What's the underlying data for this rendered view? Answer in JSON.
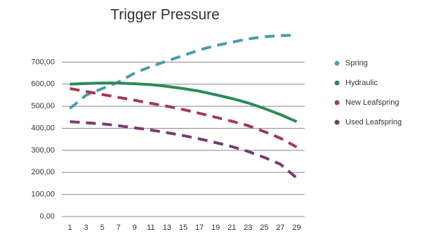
{
  "chart_data": {
    "type": "line",
    "title": "Trigger Pressure",
    "categories": [
      "1",
      "3",
      "5",
      "7",
      "9",
      "11",
      "13",
      "15",
      "17",
      "19",
      "21",
      "23",
      "25",
      "27",
      "29"
    ],
    "series": [
      {
        "name": "Spring",
        "color": "#4a9bb0",
        "dashed": true,
        "values": [
          490,
          550,
          580,
          610,
          650,
          680,
          705,
          730,
          755,
          775,
          790,
          805,
          815,
          820,
          822
        ]
      },
      {
        "name": "Hydraulic",
        "color": "#2e8a5a",
        "dashed": false,
        "values": [
          600,
          603,
          605,
          605,
          602,
          598,
          590,
          580,
          568,
          552,
          535,
          515,
          490,
          462,
          430
        ]
      },
      {
        "name": "New Leafspring",
        "color": "#a33a52",
        "dashed": true,
        "values": [
          580,
          567,
          553,
          540,
          527,
          513,
          500,
          485,
          468,
          450,
          432,
          412,
          385,
          355,
          315
        ]
      },
      {
        "name": "Used Leafspring",
        "color": "#7a3b6e",
        "dashed": true,
        "values": [
          430,
          425,
          420,
          412,
          402,
          392,
          380,
          367,
          352,
          335,
          317,
          295,
          268,
          237,
          175
        ]
      }
    ],
    "ylim": [
      0,
      870
    ],
    "yticks": [
      {
        "value": 0,
        "label": "0,00"
      },
      {
        "value": 100,
        "label": "100,00"
      },
      {
        "value": 200,
        "label": "200,00"
      },
      {
        "value": 300,
        "label": "300,00"
      },
      {
        "value": 400,
        "label": "400,00"
      },
      {
        "value": 500,
        "label": "500,00"
      },
      {
        "value": 600,
        "label": "600,00"
      },
      {
        "value": 700,
        "label": "700,00"
      }
    ],
    "grid": true,
    "legend": "right"
  }
}
